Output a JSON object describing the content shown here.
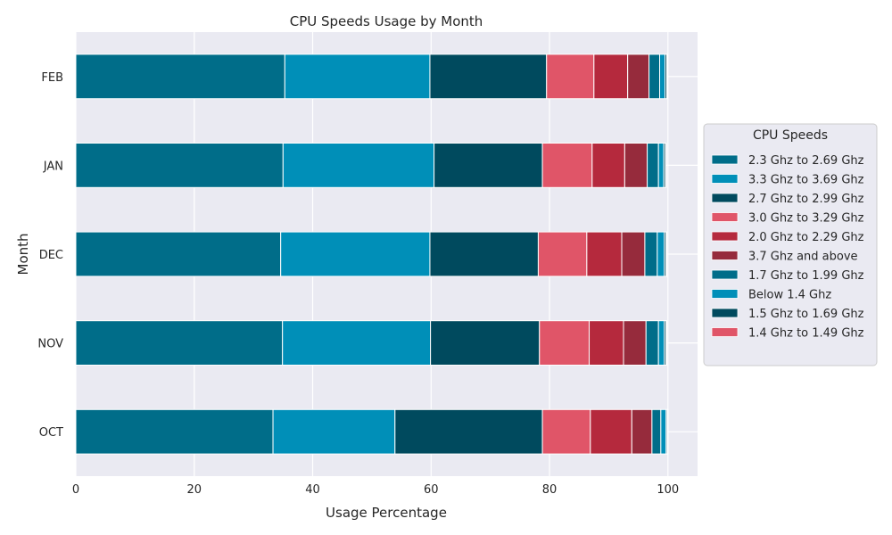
{
  "chart_data": {
    "type": "bar",
    "orientation": "horizontal",
    "stacked": true,
    "title": "CPU Speeds Usage by Month",
    "xlabel": "Usage Percentage",
    "ylabel": "Month",
    "xlim": [
      0,
      105
    ],
    "xticks": [
      0,
      20,
      40,
      60,
      80,
      100
    ],
    "categories": [
      "FEB",
      "JAN",
      "DEC",
      "NOV",
      "OCT"
    ],
    "grid": true,
    "legend_title": "CPU Speeds",
    "legend_position": "center-right, outside plot",
    "series": [
      {
        "name": "2.3 Ghz to 2.69 Ghz",
        "color": "#006d89",
        "values": [
          35.3,
          35.0,
          34.6,
          34.9,
          33.3
        ]
      },
      {
        "name": "3.3 Ghz to 3.69 Ghz",
        "color": "#008fb8",
        "values": [
          24.5,
          25.5,
          25.2,
          25.0,
          20.6
        ]
      },
      {
        "name": "2.7 Ghz to 2.99 Ghz",
        "color": "#004a5e",
        "values": [
          19.7,
          18.3,
          18.3,
          18.4,
          24.9
        ]
      },
      {
        "name": "3.0 Ghz to 3.29 Ghz",
        "color": "#e05568",
        "values": [
          8.0,
          8.4,
          8.2,
          8.4,
          8.1
        ]
      },
      {
        "name": "2.0 Ghz to 2.29 Ghz",
        "color": "#b5293d",
        "values": [
          5.7,
          5.5,
          5.9,
          5.8,
          7.0
        ]
      },
      {
        "name": "3.7 Ghz and above",
        "color": "#962b3c",
        "values": [
          3.6,
          3.8,
          3.9,
          3.8,
          3.4
        ]
      },
      {
        "name": "1.7 Ghz to 1.99 Ghz",
        "color": "#006d89",
        "values": [
          1.8,
          1.9,
          2.1,
          2.1,
          1.5
        ]
      },
      {
        "name": "Below 1.4 Ghz",
        "color": "#008fb8",
        "values": [
          0.9,
          0.9,
          1.2,
          1.0,
          0.9
        ]
      },
      {
        "name": "1.5 Ghz to 1.69 Ghz",
        "color": "#004a5e",
        "values": [
          0.3,
          0.3,
          0.3,
          0.3,
          0.2
        ]
      },
      {
        "name": "1.4 Ghz to 1.49 Ghz",
        "color": "#e05568",
        "values": [
          0.1,
          0.1,
          0.1,
          0.1,
          0.1
        ]
      }
    ]
  }
}
